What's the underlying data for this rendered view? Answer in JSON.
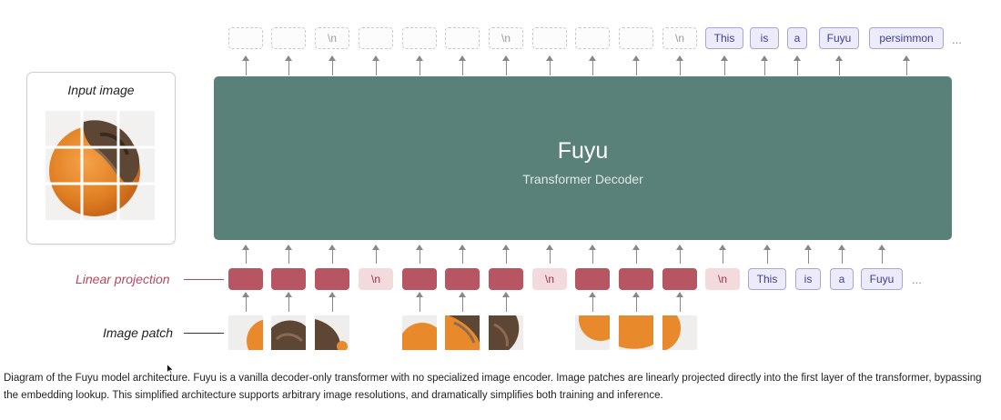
{
  "input_card": {
    "title": "Input image"
  },
  "decoder": {
    "title": "Fuyu",
    "subtitle": "Transformer Decoder"
  },
  "labels": {
    "linear_projection": "Linear projection",
    "image_patch": "Image patch"
  },
  "output_row": {
    "tokens": [
      "",
      "",
      "\\n",
      "",
      "",
      "",
      "\\n",
      "",
      "",
      "",
      "\\n",
      "This",
      "is",
      "a",
      "Fuyu",
      "persimmon"
    ],
    "ellipsis": "..."
  },
  "input_row": {
    "tokens": [
      "",
      "",
      "",
      "\\n",
      "",
      "",
      "",
      "\\n",
      "",
      "",
      "",
      "\\n",
      "This",
      "is",
      "a",
      "Fuyu"
    ],
    "ellipsis": "..."
  },
  "caption": "Diagram of the Fuyu model architecture. Fuyu is a vanilla decoder-only transformer with no specialized image encoder. Image patches are linearly projected directly into the first layer of the transformer, bypassing the embedding lookup. This simplified architecture supports arbitrary image resolutions, and dramatically simplifies both training and inference.",
  "colors": {
    "decoder": "#5a8179",
    "projection_patch": "#b85563",
    "projection_newline": "#f3dadd",
    "text_token": "#ecebfa",
    "label_accent": "#b5485c"
  },
  "icons": {
    "cursor": "mouse-cursor-icon"
  }
}
